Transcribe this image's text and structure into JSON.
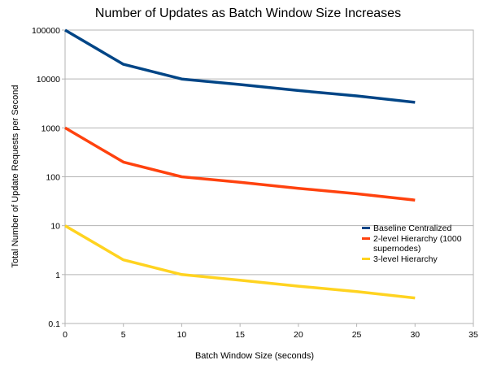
{
  "chart_data": {
    "type": "line",
    "title": "Number of Updates as Batch Window Size Increases",
    "xlabel": "Batch Window Size (seconds)",
    "ylabel": "Total Number of Update Requests per Second",
    "xlim": [
      0,
      35
    ],
    "ylim": [
      0.1,
      100000
    ],
    "yscale": "log",
    "x_ticks": [
      0,
      5,
      10,
      15,
      20,
      25,
      30,
      35
    ],
    "y_ticks": [
      0.1,
      1,
      10,
      100,
      1000,
      10000,
      100000
    ],
    "x_tick_labels": [
      "0",
      "5",
      "10",
      "15",
      "20",
      "25",
      "30",
      "35"
    ],
    "y_tick_labels": [
      "0.1",
      "1",
      "10",
      "100",
      "1000",
      "10000",
      "100000"
    ],
    "grid": "horizontal",
    "legend_position": "right",
    "x": [
      0,
      5,
      10,
      15,
      20,
      25,
      30
    ],
    "series": [
      {
        "name": "Baseline Centralized",
        "name_lines": [
          "Baseline Centralized"
        ],
        "color": "#004586",
        "values": [
          100000,
          20000,
          10000,
          7700,
          5800,
          4500,
          3333
        ]
      },
      {
        "name": "2-level Hierarchy (1000 supernodes)",
        "name_lines": [
          "2-level Hierarchy (1000",
          "supernodes)"
        ],
        "color": "#ff420e",
        "values": [
          1000,
          200,
          100,
          77,
          58,
          45,
          33.3
        ]
      },
      {
        "name": "3-level Hierarchy",
        "name_lines": [
          "3-level Hierarchy"
        ],
        "color": "#ffd320",
        "values": [
          10,
          2,
          1,
          0.77,
          0.58,
          0.45,
          0.333
        ]
      }
    ]
  }
}
